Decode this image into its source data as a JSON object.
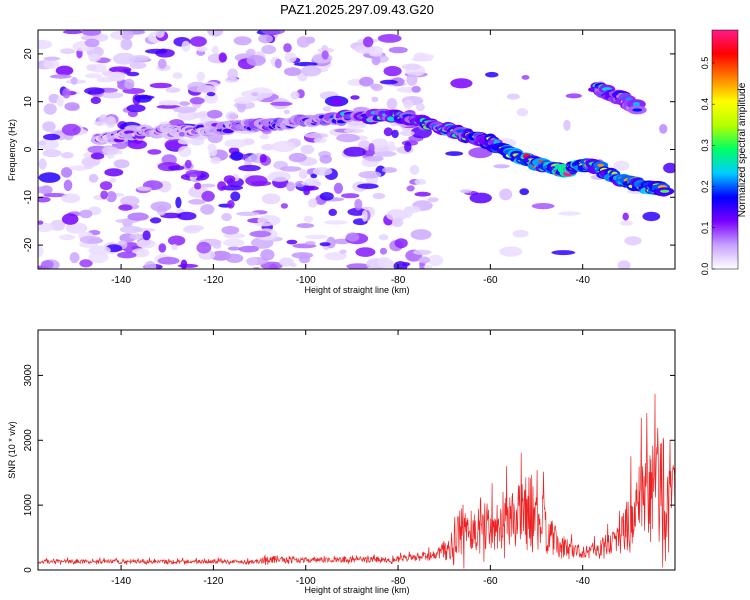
{
  "title": "PAZ1.2025.297.09.43.G20",
  "chart_data": [
    {
      "type": "heatmap",
      "xlabel": "Height of straight line (km)",
      "ylabel": "Frequency (Hz)",
      "xlim": [
        -158,
        -20
      ],
      "ylim": [
        -25,
        25
      ],
      "xticks": [
        -140,
        -120,
        -100,
        -80,
        -60,
        -40
      ],
      "yticks": [
        20,
        10,
        0,
        -10,
        -20
      ],
      "colorbar": {
        "label": "Normalized spectral amplitude",
        "range": [
          0.0,
          0.58
        ],
        "ticks": [
          "0.0",
          "0.1",
          "0.2",
          "0.3",
          "0.4",
          "0.5"
        ],
        "colors": [
          "#ffffff",
          "#c8a2ff",
          "#7a00ff",
          "#0000ff",
          "#00ccff",
          "#00ff66",
          "#b4ff00",
          "#ffff00",
          "#ff8000",
          "#ff0000",
          "#ff1a8c"
        ]
      },
      "ridge": [
        {
          "x": -145,
          "y": 2.0,
          "a": 0.1
        },
        {
          "x": -135,
          "y": 3.5,
          "a": 0.14
        },
        {
          "x": -125,
          "y": 4.0,
          "a": 0.12
        },
        {
          "x": -115,
          "y": 4.8,
          "a": 0.16
        },
        {
          "x": -108,
          "y": 5.0,
          "a": 0.2
        },
        {
          "x": -100,
          "y": 6.0,
          "a": 0.16
        },
        {
          "x": -90,
          "y": 6.8,
          "a": 0.22
        },
        {
          "x": -80,
          "y": 7.0,
          "a": 0.3
        },
        {
          "x": -72,
          "y": 5.0,
          "a": 0.28
        },
        {
          "x": -65,
          "y": 3.0,
          "a": 0.3
        },
        {
          "x": -60,
          "y": 1.5,
          "a": 0.38
        },
        {
          "x": -55,
          "y": -1.0,
          "a": 0.45
        },
        {
          "x": -48,
          "y": -3.5,
          "a": 0.5
        },
        {
          "x": -44,
          "y": -4.5,
          "a": 0.55
        },
        {
          "x": -38,
          "y": -3.0,
          "a": 0.42
        },
        {
          "x": -32,
          "y": -6.0,
          "a": 0.45
        },
        {
          "x": -27,
          "y": -7.5,
          "a": 0.48
        },
        {
          "x": -22,
          "y": -8.5,
          "a": 0.4
        }
      ],
      "secondary_ridge": [
        {
          "x": -37,
          "y": 13.0,
          "a": 0.25
        },
        {
          "x": -32,
          "y": 11.0,
          "a": 0.3
        },
        {
          "x": -28,
          "y": 8.5,
          "a": 0.2
        }
      ]
    },
    {
      "type": "line",
      "xlabel": "Height of straight line (km)",
      "ylabel": "SNR (10 * v/v)",
      "xlim": [
        -158,
        -20
      ],
      "ylim": [
        0,
        3700
      ],
      "xticks": [
        -140,
        -120,
        -100,
        -80,
        -60,
        -40
      ],
      "yticks": [
        0,
        1000,
        2000,
        3000
      ],
      "color": "#ee2222",
      "envelope": [
        {
          "x": -158,
          "base": 120,
          "amp": 80
        },
        {
          "x": -110,
          "base": 120,
          "amp": 80
        },
        {
          "x": -109,
          "base": 150,
          "amp": 160
        },
        {
          "x": -100,
          "base": 140,
          "amp": 100
        },
        {
          "x": -80,
          "base": 150,
          "amp": 120
        },
        {
          "x": -72,
          "base": 200,
          "amp": 200
        },
        {
          "x": -68,
          "base": 300,
          "amp": 600
        },
        {
          "x": -66,
          "base": 500,
          "amp": 1100
        },
        {
          "x": -62,
          "base": 500,
          "amp": 900
        },
        {
          "x": -58,
          "base": 600,
          "amp": 1000
        },
        {
          "x": -54,
          "base": 700,
          "amp": 1200
        },
        {
          "x": -50,
          "base": 700,
          "amp": 1700
        },
        {
          "x": -48,
          "base": 500,
          "amp": 900
        },
        {
          "x": -45,
          "base": 300,
          "amp": 500
        },
        {
          "x": -40,
          "base": 250,
          "amp": 250
        },
        {
          "x": -36,
          "base": 300,
          "amp": 350
        },
        {
          "x": -32,
          "base": 450,
          "amp": 600
        },
        {
          "x": -30,
          "base": 600,
          "amp": 1200
        },
        {
          "x": -27,
          "base": 800,
          "amp": 1800
        },
        {
          "x": -24,
          "base": 1000,
          "amp": 2600
        },
        {
          "x": -22,
          "base": 900,
          "amp": 2400
        },
        {
          "x": -20,
          "base": 700,
          "amp": 1800
        }
      ]
    }
  ]
}
